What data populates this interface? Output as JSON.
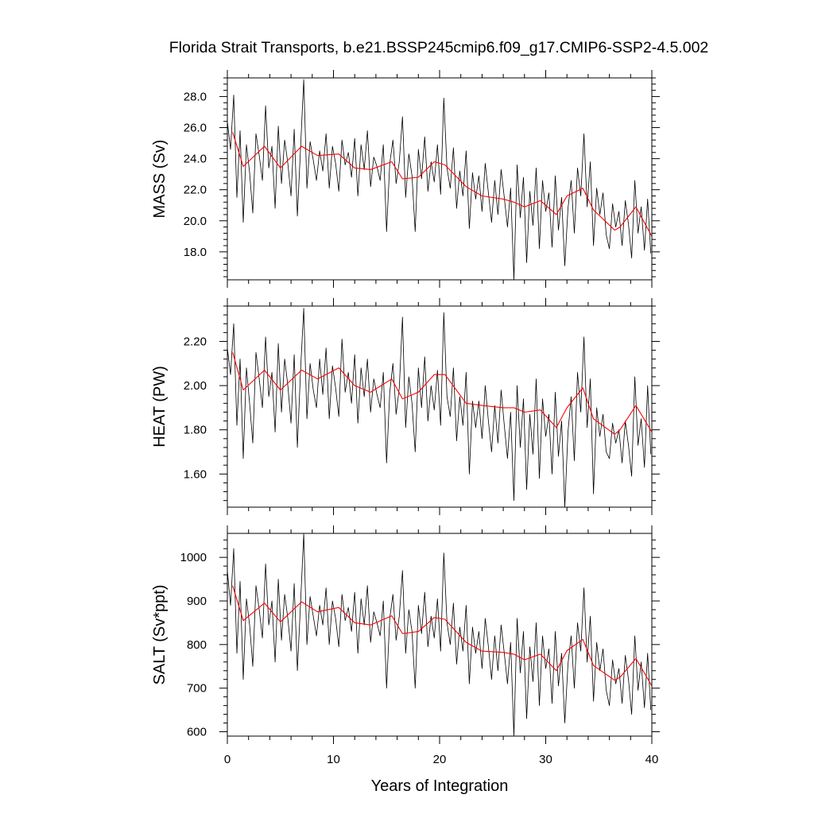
{
  "title": "Florida Strait Transports, b.e21.BSSP245cmip6.f09_g17.CMIP6-SSP2-4.5.002",
  "xlabel": "Years of Integration",
  "colors": {
    "monthly_series": "#000000",
    "annual_mean_series": "#ff0000"
  },
  "chart_data": [
    {
      "type": "line",
      "panel": "top",
      "ylabel": "MASS (Sv)",
      "xlim": [
        0,
        40
      ],
      "ylim": [
        16.2,
        29.2
      ],
      "x_ticks": [
        "0",
        "10",
        "20",
        "30",
        "40"
      ],
      "y_tick_values": [
        18,
        20,
        22,
        24,
        26,
        28
      ],
      "y_tick_labels": [
        "18.0",
        "20.0",
        "22.0",
        "24.0",
        "26.0",
        "28.0"
      ],
      "grid": false,
      "series": [
        {
          "role": "monthly",
          "x": [
            0,
            0.3,
            0.6,
            0.9,
            1.2,
            1.5,
            1.8,
            2.1,
            2.4,
            2.7,
            3,
            3.3,
            3.6,
            3.9,
            4.2,
            4.5,
            4.8,
            5.1,
            5.4,
            5.7,
            6,
            6.3,
            6.6,
            6.9,
            7.2,
            7.5,
            7.8,
            8.1,
            8.4,
            8.7,
            9,
            9.3,
            9.6,
            9.9,
            10.2,
            10.5,
            10.8,
            11.1,
            11.4,
            11.7,
            12,
            12.3,
            12.6,
            12.9,
            13.2,
            13.5,
            13.8,
            14.1,
            14.4,
            14.7,
            15,
            15.3,
            15.6,
            15.9,
            16.2,
            16.5,
            16.8,
            17.1,
            17.4,
            17.7,
            18,
            18.3,
            18.6,
            18.9,
            19.2,
            19.5,
            19.8,
            20.1,
            20.4,
            20.7,
            21,
            21.3,
            21.6,
            21.9,
            22.2,
            22.5,
            22.8,
            23.1,
            23.4,
            23.7,
            24,
            24.3,
            24.6,
            24.9,
            25.2,
            25.5,
            25.8,
            26.1,
            26.4,
            26.7,
            27,
            27.3,
            27.6,
            27.9,
            28.2,
            28.5,
            28.8,
            29.1,
            29.4,
            29.7,
            30,
            30.3,
            30.6,
            30.9,
            31.2,
            31.5,
            31.8,
            32.1,
            32.4,
            32.7,
            33,
            33.3,
            33.6,
            33.9,
            34.2,
            34.5,
            34.8,
            35.1,
            35.4,
            35.7,
            36,
            36.3,
            36.6,
            36.9,
            37.2,
            37.5,
            37.8,
            38.1,
            38.4,
            38.7,
            39,
            39.3,
            39.6,
            39.9
          ],
          "y": [
            26.4,
            24.6,
            28.1,
            21.5,
            25.8,
            19.9,
            24.9,
            23.1,
            20.5,
            25.6,
            24.2,
            22.6,
            27.4,
            23.4,
            24.8,
            20.8,
            26.1,
            22.4,
            25.2,
            23.7,
            21.6,
            25.9,
            20.3,
            24.7,
            29.1,
            22.1,
            25.1,
            23.9,
            22.6,
            24.5,
            23.2,
            25.6,
            22.1,
            24.8,
            23.7,
            21.9,
            25.2,
            23.6,
            24.4,
            22.8,
            25.3,
            21.6,
            24.9,
            23.3,
            25.8,
            22.2,
            24.1,
            23.5,
            22.6,
            24.9,
            19.3,
            23.7,
            25.2,
            22.4,
            23.8,
            26.7,
            21.5,
            24.3,
            22.9,
            19.3,
            24.6,
            22.7,
            25.4,
            21.9,
            23.8,
            22.5,
            24.9,
            21.7,
            27.9,
            23.4,
            22.1,
            24.7,
            20.8,
            23.2,
            21.6,
            24.5,
            19.5,
            23.1,
            21.4,
            22.9,
            20.6,
            23.7,
            21.8,
            19.9,
            22.6,
            20.4,
            23.3,
            21.5,
            19.6,
            22.1,
            16.2,
            23.6,
            20.2,
            22.8,
            17.3,
            21.9,
            19.7,
            23.4,
            18.2,
            22.6,
            20.6,
            21.8,
            18.3,
            22.9,
            19.4,
            21.5,
            17.1,
            20.8,
            22.6,
            19.2,
            23.4,
            21.6,
            25.6,
            20.9,
            23.8,
            18.4,
            22.1,
            20.4,
            21.8,
            19.1,
            18.2,
            21.1,
            19.6,
            20.6,
            18.4,
            21.3,
            19.8,
            17.6,
            22.6,
            19.2,
            20.9,
            18.1,
            21.4,
            17.9
          ]
        },
        {
          "role": "annual mean",
          "x": [
            0.5,
            1.5,
            3.5,
            5,
            7,
            8.5,
            10.5,
            12,
            13.5,
            15.5,
            16.5,
            18,
            19.5,
            20.5,
            22.5,
            24,
            26,
            27,
            28,
            29.5,
            31,
            32,
            33.5,
            34.5,
            36.5,
            37,
            38.5,
            40
          ],
          "y": [
            25.7,
            23.5,
            24.8,
            23.4,
            24.8,
            24.2,
            24.3,
            23.4,
            23.3,
            23.8,
            22.7,
            22.8,
            23.8,
            23.6,
            22.2,
            21.6,
            21.4,
            21.2,
            20.9,
            21.3,
            20.4,
            21.6,
            22.1,
            20.7,
            19.4,
            19.6,
            20.9,
            19.0
          ]
        }
      ]
    },
    {
      "type": "line",
      "panel": "middle",
      "ylabel": "HEAT (PW)",
      "xlim": [
        0,
        40
      ],
      "ylim": [
        1.45,
        2.36
      ],
      "x_ticks": [
        "0",
        "10",
        "20",
        "30",
        "40"
      ],
      "y_tick_values": [
        1.6,
        1.8,
        2.0,
        2.2
      ],
      "y_tick_labels": [
        "1.60",
        "1.80",
        "2.00",
        "2.20"
      ],
      "grid": false,
      "series": [
        {
          "role": "monthly",
          "x": [
            0,
            0.3,
            0.6,
            0.9,
            1.2,
            1.5,
            1.8,
            2.1,
            2.4,
            2.7,
            3,
            3.3,
            3.6,
            3.9,
            4.2,
            4.5,
            4.8,
            5.1,
            5.4,
            5.7,
            6,
            6.3,
            6.6,
            6.9,
            7.2,
            7.5,
            7.8,
            8.1,
            8.4,
            8.7,
            9,
            9.3,
            9.6,
            9.9,
            10.2,
            10.5,
            10.8,
            11.1,
            11.4,
            11.7,
            12,
            12.3,
            12.6,
            12.9,
            13.2,
            13.5,
            13.8,
            14.1,
            14.4,
            14.7,
            15,
            15.3,
            15.6,
            15.9,
            16.2,
            16.5,
            16.8,
            17.1,
            17.4,
            17.7,
            18,
            18.3,
            18.6,
            18.9,
            19.2,
            19.5,
            19.8,
            20.1,
            20.4,
            20.7,
            21,
            21.3,
            21.6,
            21.9,
            22.2,
            22.5,
            22.8,
            23.1,
            23.4,
            23.7,
            24,
            24.3,
            24.6,
            24.9,
            25.2,
            25.5,
            25.8,
            26.1,
            26.4,
            26.7,
            27,
            27.3,
            27.6,
            27.9,
            28.2,
            28.5,
            28.8,
            29.1,
            29.4,
            29.7,
            30,
            30.3,
            30.6,
            30.9,
            31.2,
            31.5,
            31.8,
            32.1,
            32.4,
            32.7,
            33,
            33.3,
            33.6,
            33.9,
            34.2,
            34.5,
            34.8,
            35.1,
            35.4,
            35.7,
            36,
            36.3,
            36.6,
            36.9,
            37.2,
            37.5,
            37.8,
            38.1,
            38.4,
            38.7,
            39,
            39.3,
            39.6,
            39.9
          ],
          "y": [
            2.17,
            2.05,
            2.28,
            1.82,
            2.12,
            1.67,
            2.08,
            1.92,
            1.74,
            2.15,
            2.03,
            1.9,
            2.22,
            1.95,
            2.06,
            1.79,
            2.19,
            1.88,
            2.12,
            2.0,
            1.83,
            2.14,
            1.72,
            2.07,
            2.35,
            1.85,
            2.1,
            1.98,
            1.9,
            2.12,
            1.96,
            2.17,
            1.85,
            2.09,
            1.99,
            1.86,
            2.21,
            1.97,
            2.06,
            1.92,
            2.14,
            1.83,
            2.08,
            1.95,
            2.12,
            1.88,
            2.03,
            1.96,
            1.9,
            2.06,
            1.65,
            1.97,
            2.1,
            1.87,
            1.99,
            2.31,
            1.81,
            2.04,
            1.92,
            1.7,
            2.08,
            1.9,
            2.13,
            1.84,
            2.0,
            1.89,
            2.07,
            1.82,
            2.33,
            1.95,
            1.86,
            2.08,
            1.75,
            1.95,
            1.82,
            2.06,
            1.6,
            1.93,
            1.81,
            1.93,
            1.76,
            2.0,
            1.84,
            1.7,
            1.91,
            1.74,
            1.98,
            1.82,
            1.67,
            1.88,
            1.48,
            2.0,
            1.72,
            1.94,
            1.53,
            1.87,
            1.69,
            2.03,
            1.58,
            1.94,
            1.77,
            1.87,
            1.6,
            1.97,
            1.68,
            1.84,
            1.45,
            1.79,
            1.95,
            1.66,
            2.06,
            1.88,
            2.22,
            1.81,
            2.03,
            1.51,
            1.9,
            1.77,
            1.87,
            1.7,
            1.67,
            1.83,
            1.74,
            1.8,
            1.65,
            1.84,
            1.73,
            1.59,
            2.04,
            1.73,
            1.85,
            1.63,
            2.0,
            1.69
          ]
        },
        {
          "role": "annual mean",
          "x": [
            0.5,
            1.5,
            3.5,
            5,
            7,
            8.5,
            10.5,
            12,
            13.5,
            15.5,
            16.5,
            18,
            19.5,
            20.5,
            22.5,
            24,
            26,
            27,
            28,
            29.5,
            31,
            32,
            33.5,
            34.5,
            36.5,
            37,
            38.5,
            40
          ],
          "y": [
            2.15,
            1.98,
            2.07,
            1.98,
            2.07,
            2.03,
            2.08,
            2.0,
            1.97,
            2.03,
            1.94,
            1.97,
            2.05,
            2.05,
            1.92,
            1.91,
            1.9,
            1.9,
            1.88,
            1.89,
            1.81,
            1.9,
            1.99,
            1.85,
            1.78,
            1.8,
            1.91,
            1.79
          ]
        }
      ]
    },
    {
      "type": "line",
      "panel": "bottom",
      "ylabel": "SALT (Sv*ppt)",
      "xlim": [
        0,
        40
      ],
      "ylim": [
        590,
        1055
      ],
      "x_ticks": [
        "0",
        "10",
        "20",
        "30",
        "40"
      ],
      "y_tick_values": [
        600,
        700,
        800,
        900,
        1000
      ],
      "y_tick_labels": [
        "600",
        "700",
        "800",
        "900",
        "1000"
      ],
      "grid": false,
      "series": [
        {
          "role": "monthly",
          "x": [
            0,
            0.3,
            0.6,
            0.9,
            1.2,
            1.5,
            1.8,
            2.1,
            2.4,
            2.7,
            3,
            3.3,
            3.6,
            3.9,
            4.2,
            4.5,
            4.8,
            5.1,
            5.4,
            5.7,
            6,
            6.3,
            6.6,
            6.9,
            7.2,
            7.5,
            7.8,
            8.1,
            8.4,
            8.7,
            9,
            9.3,
            9.6,
            9.9,
            10.2,
            10.5,
            10.8,
            11.1,
            11.4,
            11.7,
            12,
            12.3,
            12.6,
            12.9,
            13.2,
            13.5,
            13.8,
            14.1,
            14.4,
            14.7,
            15,
            15.3,
            15.6,
            15.9,
            16.2,
            16.5,
            16.8,
            17.1,
            17.4,
            17.7,
            18,
            18.3,
            18.6,
            18.9,
            19.2,
            19.5,
            19.8,
            20.1,
            20.4,
            20.7,
            21,
            21.3,
            21.6,
            21.9,
            22.2,
            22.5,
            22.8,
            23.1,
            23.4,
            23.7,
            24,
            24.3,
            24.6,
            24.9,
            25.2,
            25.5,
            25.8,
            26.1,
            26.4,
            26.7,
            27,
            27.3,
            27.6,
            27.9,
            28.2,
            28.5,
            28.8,
            29.1,
            29.4,
            29.7,
            30,
            30.3,
            30.6,
            30.9,
            31.2,
            31.5,
            31.8,
            32.1,
            32.4,
            32.7,
            33,
            33.3,
            33.6,
            33.9,
            34.2,
            34.5,
            34.8,
            35.1,
            35.4,
            35.7,
            36,
            36.3,
            36.6,
            36.9,
            37.2,
            37.5,
            37.8,
            38.1,
            38.4,
            38.7,
            39,
            39.3,
            39.6,
            39.9
          ],
          "y": [
            970,
            890,
            1020,
            780,
            945,
            720,
            905,
            845,
            750,
            935,
            880,
            815,
            985,
            845,
            900,
            760,
            950,
            810,
            915,
            860,
            785,
            940,
            740,
            895,
            1055,
            800,
            910,
            865,
            820,
            890,
            845,
            930,
            800,
            900,
            860,
            795,
            915,
            855,
            885,
            830,
            920,
            780,
            905,
            845,
            935,
            805,
            875,
            850,
            820,
            900,
            700,
            860,
            915,
            810,
            865,
            970,
            780,
            880,
            830,
            700,
            890,
            825,
            920,
            795,
            865,
            815,
            905,
            785,
            1010,
            850,
            800,
            895,
            755,
            840,
            785,
            890,
            710,
            840,
            780,
            830,
            745,
            860,
            795,
            720,
            820,
            740,
            845,
            780,
            710,
            805,
            590,
            860,
            735,
            830,
            630,
            795,
            715,
            850,
            660,
            820,
            745,
            790,
            665,
            830,
            705,
            780,
            620,
            755,
            820,
            700,
            850,
            785,
            930,
            760,
            865,
            670,
            805,
            740,
            790,
            695,
            660,
            765,
            710,
            745,
            665,
            775,
            720,
            640,
            820,
            695,
            760,
            655,
            780,
            650
          ]
        },
        {
          "role": "annual mean",
          "x": [
            0.5,
            1.5,
            3.5,
            5,
            7,
            8.5,
            10.5,
            12,
            13.5,
            15.5,
            16.5,
            18,
            19.5,
            20.5,
            22.5,
            24,
            26,
            27,
            28,
            29.5,
            31,
            32,
            33.5,
            34.5,
            36.5,
            37,
            38.5,
            40
          ],
          "y": [
            935,
            855,
            895,
            852,
            898,
            875,
            885,
            850,
            845,
            866,
            825,
            830,
            862,
            858,
            805,
            785,
            782,
            778,
            765,
            778,
            740,
            786,
            812,
            752,
            718,
            725,
            768,
            705
          ]
        }
      ]
    }
  ]
}
